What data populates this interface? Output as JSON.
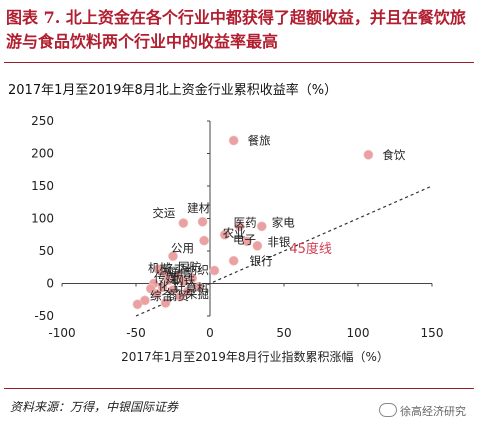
{
  "figure": {
    "title": "图表 7. 北上资金在各个行业中都获得了超额收益，并且在餐饮旅游与食品饮料两个行业中的收益率最高"
  },
  "source": "资料来源：万得，中银国际证券",
  "watermark": "徐高经济研究",
  "chart_data": {
    "type": "scatter",
    "title": "2017年1月至2019年8月北上资金行业累积收益率（%）",
    "xlabel": "2017年1月至2019年8月行业指数累积涨幅（%）",
    "ylabel": "",
    "xlim": [
      -100,
      150
    ],
    "ylim": [
      -50,
      250
    ],
    "xticks": [
      -100,
      -50,
      0,
      50,
      100,
      150
    ],
    "yticks": [
      -50,
      0,
      50,
      100,
      150,
      200,
      250
    ],
    "grid": false,
    "marker_color": "#e9a1a1",
    "reference_line": {
      "label": "45度线",
      "points": [
        [
          -50,
          -50
        ],
        [
          150,
          150
        ]
      ],
      "color": "#d04050"
    },
    "points": [
      {
        "name": "餐旅",
        "x": 16,
        "y": 220
      },
      {
        "name": "食饮",
        "x": 107,
        "y": 198
      },
      {
        "name": "建材",
        "x": -5,
        "y": 95
      },
      {
        "name": "交运",
        "x": -18,
        "y": 93
      },
      {
        "name": "医药",
        "x": 20,
        "y": 88
      },
      {
        "name": "家电",
        "x": 35,
        "y": 88
      },
      {
        "name": "农业",
        "x": 10,
        "y": 75
      },
      {
        "name": "电子",
        "x": 25,
        "y": 65
      },
      {
        "name": "非银",
        "x": 32,
        "y": 58
      },
      {
        "name": "",
        "x": -4,
        "y": 66
      },
      {
        "name": "公用",
        "x": -25,
        "y": 42
      },
      {
        "name": "银行",
        "x": 16,
        "y": 35
      },
      {
        "name": "",
        "x": 3,
        "y": 20
      },
      {
        "name": "",
        "x": -35,
        "y": 22
      },
      {
        "name": "",
        "x": -30,
        "y": 15
      },
      {
        "name": "",
        "x": -22,
        "y": 12
      },
      {
        "name": "",
        "x": -28,
        "y": 5
      },
      {
        "name": "",
        "x": -18,
        "y": 3
      },
      {
        "name": "",
        "x": -12,
        "y": 8
      },
      {
        "name": "",
        "x": -38,
        "y": 0
      },
      {
        "name": "",
        "x": -32,
        "y": -6
      },
      {
        "name": "",
        "x": -25,
        "y": -10
      },
      {
        "name": "",
        "x": -15,
        "y": -12
      },
      {
        "name": "",
        "x": -8,
        "y": -5
      },
      {
        "name": "",
        "x": -20,
        "y": -20
      },
      {
        "name": "",
        "x": -36,
        "y": -16
      },
      {
        "name": "",
        "x": -44,
        "y": -26
      },
      {
        "name": "",
        "x": -49,
        "y": -32
      },
      {
        "name": "",
        "x": -30,
        "y": -30
      },
      {
        "name": "",
        "x": -40,
        "y": -8
      }
    ],
    "cluster_labels": [
      "机械",
      "轻工",
      "通信",
      "国防",
      "纺织",
      "传媒",
      "钢铁",
      "化工",
      "计算机",
      "综合",
      "商贸",
      "采掘"
    ]
  }
}
